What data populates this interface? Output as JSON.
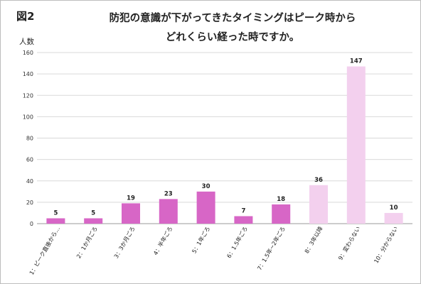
{
  "figure": {
    "label": "図2"
  },
  "chart_data": {
    "type": "bar",
    "title_lines": [
      "防犯の意識が下がってきたタイミングはピーク時から",
      "どれくらい経った時ですか。"
    ],
    "ylabel": "人数",
    "xlabel": "",
    "ylim": [
      0,
      160
    ],
    "yticks": [
      0,
      20,
      40,
      60,
      80,
      100,
      120,
      140,
      160
    ],
    "grid": true,
    "categories": [
      "1：ピーク直後から…",
      "2：1か月ごろ",
      "3：3か月ごろ",
      "4：半年ごろ",
      "5：1年ごろ",
      "6：1.5年ごろ",
      "7：1.5年~2年ごろ",
      "8：3年以降",
      "9：変わらない",
      "10：分からない"
    ],
    "values": [
      5,
      5,
      19,
      23,
      30,
      7,
      18,
      36,
      147,
      10
    ],
    "colors": {
      "dark": "#d766c6",
      "light": "#f3d0ee",
      "grid": "#d9d9d9",
      "axis": "#999999"
    },
    "bar_shade": [
      "dark",
      "dark",
      "dark",
      "dark",
      "dark",
      "dark",
      "dark",
      "light",
      "light",
      "light"
    ]
  }
}
